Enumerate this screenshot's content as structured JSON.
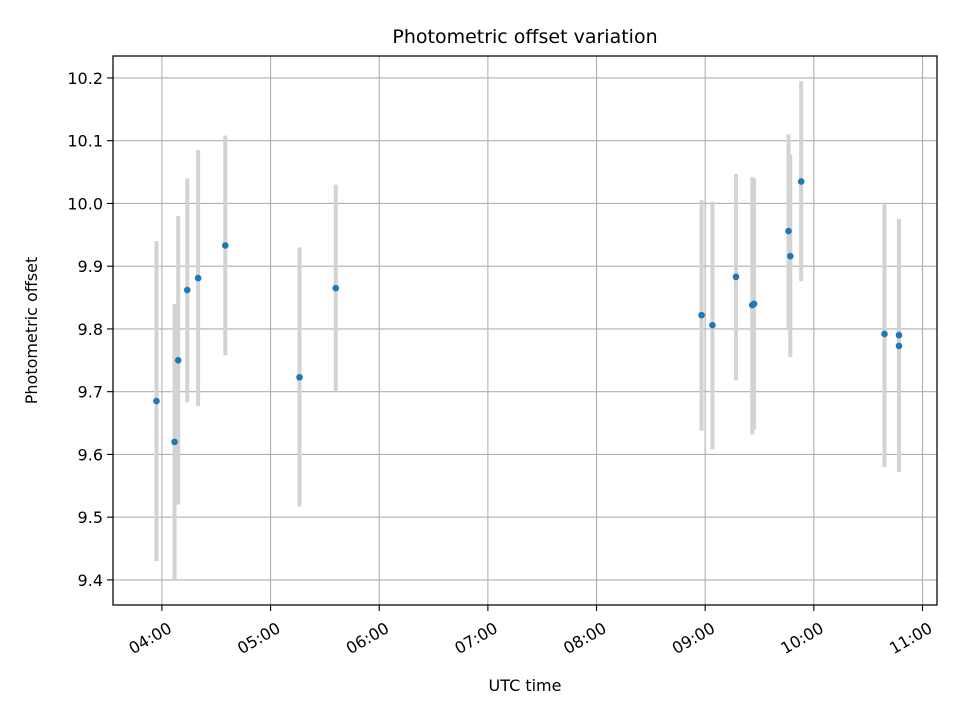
{
  "chart_data": {
    "type": "scatter",
    "title": "Photometric offset variation",
    "xlabel": "UTC time",
    "ylabel": "Photometric offset",
    "grid": true,
    "xlim": [
      "03:33",
      "11:08"
    ],
    "ylim": [
      9.36,
      10.235
    ],
    "x_ticks": [
      "04:00",
      "05:00",
      "06:00",
      "07:00",
      "08:00",
      "09:00",
      "10:00",
      "11:00"
    ],
    "y_ticks": [
      9.4,
      9.5,
      9.6,
      9.7,
      9.8,
      9.9,
      10.0,
      10.1,
      10.2
    ],
    "y_tick_labels": [
      "9.4",
      "9.5",
      "9.6",
      "9.7",
      "9.8",
      "9.9",
      "10.0",
      "10.1",
      "10.2"
    ],
    "marker_color": "#1f77b4",
    "errorbar_color": "#d3d3d3",
    "series": [
      {
        "points": [
          {
            "x": "03:57",
            "y": 9.685,
            "ylow": 9.43,
            "yhigh": 9.94
          },
          {
            "x": "04:07",
            "y": 9.62,
            "ylow": 9.4,
            "yhigh": 9.84
          },
          {
            "x": "04:09",
            "y": 9.75,
            "ylow": 9.52,
            "yhigh": 9.98
          },
          {
            "x": "04:14",
            "y": 9.862,
            "ylow": 9.683,
            "yhigh": 10.04
          },
          {
            "x": "04:20",
            "y": 9.881,
            "ylow": 9.677,
            "yhigh": 10.085
          },
          {
            "x": "04:35",
            "y": 9.933,
            "ylow": 9.758,
            "yhigh": 10.108
          },
          {
            "x": "05:16",
            "y": 9.723,
            "ylow": 9.517,
            "yhigh": 9.93
          },
          {
            "x": "05:36",
            "y": 9.865,
            "ylow": 9.7,
            "yhigh": 10.03
          },
          {
            "x": "08:58",
            "y": 9.822,
            "ylow": 9.638,
            "yhigh": 10.005
          },
          {
            "x": "09:04",
            "y": 9.806,
            "ylow": 9.608,
            "yhigh": 10.003
          },
          {
            "x": "09:17",
            "y": 9.883,
            "ylow": 9.718,
            "yhigh": 10.047
          },
          {
            "x": "09:26",
            "y": 9.838,
            "ylow": 9.632,
            "yhigh": 10.042
          },
          {
            "x": "09:27",
            "y": 9.84,
            "ylow": 9.64,
            "yhigh": 10.04
          },
          {
            "x": "09:46",
            "y": 9.956,
            "ylow": 9.8,
            "yhigh": 10.11
          },
          {
            "x": "09:47",
            "y": 9.916,
            "ylow": 9.755,
            "yhigh": 10.078
          },
          {
            "x": "09:53",
            "y": 10.035,
            "ylow": 9.876,
            "yhigh": 10.195
          },
          {
            "x": "10:39",
            "y": 9.792,
            "ylow": 9.58,
            "yhigh": 10.0
          },
          {
            "x": "10:47",
            "y": 9.79,
            "ylow": 9.605,
            "yhigh": 9.975
          },
          {
            "x": "10:47",
            "y": 9.773,
            "ylow": 9.572,
            "yhigh": 9.975
          }
        ]
      }
    ]
  }
}
